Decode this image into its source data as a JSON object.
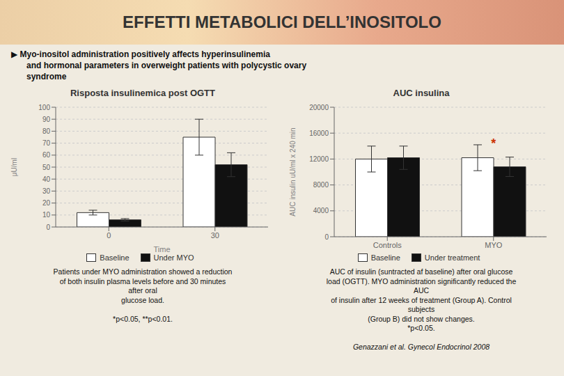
{
  "title": "EFFETTI METABOLICI DELL’INOSITOLO",
  "subtitle": [
    "▶  Myo-inositol administration positively affects hyperinsulinemia",
    "and hormonal parameters in overweight patients with polycystic ovary",
    "syndrome"
  ],
  "chart_data": [
    {
      "type": "bar",
      "title": "Risposta insulinemica post OGTT",
      "xlabel": "Time",
      "ylabel": "μU/ml",
      "categories": [
        "0",
        "30"
      ],
      "series": [
        {
          "name": "Baseline",
          "color": "#ffffff",
          "values": [
            12,
            75
          ],
          "error": [
            2,
            15
          ]
        },
        {
          "name": "Under MYO",
          "color": "#111111",
          "values": [
            6,
            52
          ],
          "error": [
            1,
            10
          ]
        }
      ],
      "ylim": [
        0,
        100
      ],
      "yticks": [
        0,
        10,
        20,
        30,
        40,
        50,
        60,
        70,
        80,
        90,
        100
      ],
      "grid": true,
      "legend": "bottom",
      "caption": "Patients under MYO administration showed a reduction\nof both insulin plasma levels before and 30 minutes\nafter oral\nglucose load.\n\n*p<0.05, **p<0.01."
    },
    {
      "type": "bar",
      "title": "AUC insulina",
      "ylabel": "AUC insulin uU/ml x 240 min",
      "categories": [
        "Controls",
        "MYO"
      ],
      "series": [
        {
          "name": "Baseline",
          "color": "#ffffff",
          "values": [
            12000,
            12200
          ],
          "error": [
            2000,
            2000
          ]
        },
        {
          "name": "Under treatment",
          "color": "#111111",
          "values": [
            12200,
            10800
          ],
          "error": [
            1800,
            1500
          ]
        }
      ],
      "ylim": [
        0,
        20000
      ],
      "yticks": [
        0,
        4000,
        8000,
        12000,
        16000,
        20000
      ],
      "grid": true,
      "legend": "bottom",
      "annotations": [
        {
          "text": "*",
          "x": "MYO",
          "y": 14400,
          "color": "#cc3300"
        }
      ],
      "caption": "AUC of insulin (suntracted af baseline) after oral glucose\nload (OGTT). MYO administration significantly reduced the\nAUC\nof insulin after 12 weeks of treatment (Group A). Control\nsubjects\n(Group B) did not show changes.\n*p<0.05.",
      "source": "Genazzani et al. Gynecol Endocrinol 2008"
    }
  ]
}
